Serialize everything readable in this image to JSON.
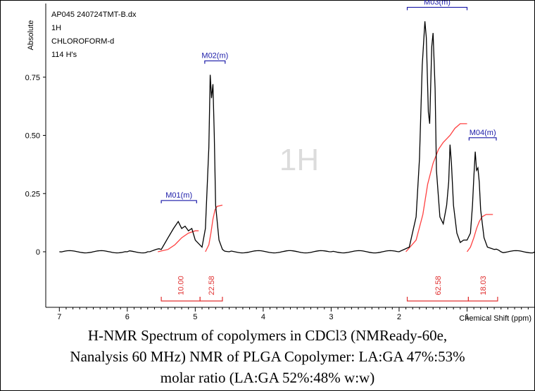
{
  "header": {
    "lines": [
      "AP045 240724TMT-B.dx",
      "1H",
      "CHLOROFORM-d",
      "114 H's"
    ]
  },
  "watermark": "1H",
  "colors": {
    "spectrum": "#000000",
    "integral": "#ff4040",
    "multiplet": "#1a1aa8",
    "integral_label": "#e03030"
  },
  "caption": {
    "line1": "H-NMR Spectrum of copolymers in CDCl3 (NMReady-60e,",
    "line2": "Nanalysis 60 MHz) NMR of PLGA Copolymer: LA:GA 47%:53%",
    "line3": "molar ratio (LA:GA 52%:48% w:w)"
  },
  "chart_data": {
    "type": "line",
    "xlabel": "Chemical Shift (ppm)",
    "ylabel": "Absolute",
    "xlim": [
      7.2,
      0.0
    ],
    "ylim": [
      -0.3,
      0.95
    ],
    "x_reversed": true,
    "x_ticks": [
      "7",
      "6",
      "5",
      "4",
      "3",
      "2",
      "1"
    ],
    "y_ticks": [
      "0.75",
      "0.50",
      "0.25",
      "0"
    ],
    "y_tick_values": [
      0.75,
      0.5,
      0.25,
      0
    ],
    "series": [
      {
        "x": [
          7.0,
          6.0,
          5.7,
          5.5,
          5.4,
          5.32,
          5.25,
          5.2,
          5.15,
          5.1,
          5.05,
          5.0,
          4.9,
          4.85,
          4.8,
          4.78,
          4.76,
          4.74,
          4.72,
          4.7,
          4.65,
          4.6,
          4.5,
          3.0,
          2.0,
          1.85,
          1.75,
          1.7,
          1.66,
          1.62,
          1.6,
          1.57,
          1.55,
          1.52,
          1.5,
          1.47,
          1.45,
          1.4,
          1.35,
          1.3,
          1.27,
          1.25,
          1.23,
          1.2,
          1.15,
          1.1,
          1.05,
          1.0,
          0.95,
          0.92,
          0.9,
          0.88,
          0.86,
          0.84,
          0.82,
          0.8,
          0.75,
          0.7,
          0.6,
          0.5,
          0.0
        ],
        "y": [
          0.0,
          0.0,
          0.0,
          0.01,
          0.06,
          0.1,
          0.13,
          0.1,
          0.11,
          0.09,
          0.1,
          0.05,
          0.02,
          0.1,
          0.45,
          0.76,
          0.66,
          0.72,
          0.5,
          0.2,
          0.05,
          0.01,
          0.0,
          0.0,
          0.0,
          0.02,
          0.15,
          0.4,
          0.8,
          0.99,
          0.92,
          0.6,
          0.55,
          0.88,
          0.94,
          0.7,
          0.35,
          0.15,
          0.12,
          0.2,
          0.3,
          0.46,
          0.38,
          0.2,
          0.08,
          0.04,
          0.05,
          0.05,
          0.08,
          0.2,
          0.32,
          0.43,
          0.35,
          0.36,
          0.3,
          0.18,
          0.06,
          0.02,
          0.01,
          0.0,
          0.0
        ]
      }
    ],
    "integral_curves": [
      {
        "x": [
          5.55,
          5.4,
          5.3,
          5.2,
          5.1,
          5.0,
          4.95
        ],
        "y": [
          0.0,
          0.01,
          0.03,
          0.06,
          0.08,
          0.09,
          0.09
        ]
      },
      {
        "x": [
          4.85,
          4.8,
          4.77,
          4.74,
          4.71,
          4.68,
          4.6
        ],
        "y": [
          0.0,
          0.03,
          0.08,
          0.14,
          0.18,
          0.195,
          0.2
        ]
      },
      {
        "x": [
          1.9,
          1.75,
          1.65,
          1.58,
          1.5,
          1.42,
          1.35,
          1.25,
          1.18,
          1.1,
          1.0
        ],
        "y": [
          0.0,
          0.05,
          0.16,
          0.29,
          0.38,
          0.44,
          0.47,
          0.5,
          0.53,
          0.55,
          0.55
        ]
      },
      {
        "x": [
          1.0,
          0.95,
          0.9,
          0.86,
          0.82,
          0.78,
          0.72,
          0.62
        ],
        "y": [
          0.0,
          0.02,
          0.06,
          0.1,
          0.13,
          0.15,
          0.16,
          0.16
        ]
      }
    ],
    "multiplets": [
      {
        "label": "M01(m)",
        "from": 5.5,
        "to": 4.98,
        "y": 0.22
      },
      {
        "label": "M02(m)",
        "from": 4.86,
        "to": 4.56,
        "y": 0.82
      },
      {
        "label": "M03(m)",
        "from": 1.88,
        "to": 1.0,
        "y": 1.05
      },
      {
        "label": "M04(m)",
        "from": 0.97,
        "to": 0.57,
        "y": 0.49
      }
    ],
    "integrals": [
      {
        "value": "10.00",
        "from": 5.5,
        "to": 4.93
      },
      {
        "value": "22.58",
        "from": 4.93,
        "to": 4.6
      },
      {
        "value": "62.58",
        "from": 1.88,
        "to": 0.98
      },
      {
        "value": "18.03",
        "from": 0.98,
        "to": 0.55
      }
    ]
  }
}
